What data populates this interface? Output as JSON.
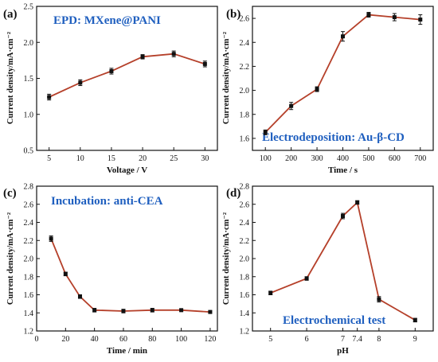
{
  "figure": {
    "colors": {
      "line": "#b5402a",
      "marker": "#111111",
      "axis": "#111111",
      "annotation": "#1f5fbf"
    }
  },
  "chart_data": [
    {
      "type": "line",
      "panel_label": "(a)",
      "annotation": "EPD: MXene@PANI",
      "xlabel": "Voltage / V",
      "ylabel": "Current density/mA·cm⁻²",
      "xlim": [
        3,
        32
      ],
      "ylim": [
        0.5,
        2.5
      ],
      "xticks": [
        5,
        10,
        15,
        20,
        25,
        30
      ],
      "xtick_labels": [
        "5",
        "10",
        "15",
        "20",
        "25",
        "30"
      ],
      "yticks": [
        0.5,
        1.0,
        1.5,
        2.0,
        2.5
      ],
      "ytick_labels": [
        "0.5",
        "1.0",
        "1.5",
        "2.0",
        "2.5"
      ],
      "series": [
        {
          "x": [
            5,
            10,
            15,
            20,
            25,
            30
          ],
          "y": [
            1.24,
            1.44,
            1.6,
            1.8,
            1.84,
            1.7
          ],
          "err": [
            0.04,
            0.04,
            0.04,
            0.03,
            0.04,
            0.04
          ]
        }
      ]
    },
    {
      "type": "line",
      "panel_label": "(b)",
      "annotation": "Electrodeposition: Au-β-CD",
      "xlabel": "Time / s",
      "ylabel": "Current density/mA·cm⁻²",
      "xlim": [
        50,
        750
      ],
      "ylim": [
        1.5,
        2.7
      ],
      "xticks": [
        100,
        200,
        300,
        400,
        500,
        600,
        700
      ],
      "xtick_labels": [
        "100",
        "200",
        "300",
        "400",
        "500",
        "600",
        "700"
      ],
      "yticks": [
        1.6,
        1.8,
        2.0,
        2.2,
        2.4,
        2.6
      ],
      "ytick_labels": [
        "1.6",
        "1.8",
        "2.0",
        "2.2",
        "2.4",
        "2.6"
      ],
      "series": [
        {
          "x": [
            100,
            200,
            300,
            400,
            500,
            600,
            700
          ],
          "y": [
            1.65,
            1.87,
            2.01,
            2.45,
            2.63,
            2.61,
            2.59
          ],
          "err": [
            0.02,
            0.03,
            0.02,
            0.04,
            0.02,
            0.03,
            0.04
          ]
        }
      ]
    },
    {
      "type": "line",
      "panel_label": "(c)",
      "annotation": "Incubation: anti-CEA",
      "xlabel": "Time / min",
      "ylabel": "Current density/mA·cm⁻²",
      "xlim": [
        0,
        125
      ],
      "ylim": [
        1.2,
        2.8
      ],
      "xticks": [
        0,
        20,
        40,
        60,
        80,
        100,
        120
      ],
      "xtick_labels": [
        "0",
        "20",
        "40",
        "60",
        "80",
        "100",
        "120"
      ],
      "yticks": [
        1.2,
        1.4,
        1.6,
        1.8,
        2.0,
        2.2,
        2.4,
        2.6,
        2.8
      ],
      "ytick_labels": [
        "1.2",
        "1.4",
        "1.6",
        "1.8",
        "2.0",
        "2.2",
        "2.4",
        "2.6",
        "2.8"
      ],
      "series": [
        {
          "x": [
            10,
            20,
            30,
            40,
            60,
            80,
            100,
            120
          ],
          "y": [
            2.22,
            1.83,
            1.58,
            1.43,
            1.42,
            1.43,
            1.43,
            1.41
          ],
          "err": [
            0.03,
            0.02,
            0.02,
            0.02,
            0.02,
            0.02,
            0.01,
            0.01
          ]
        }
      ]
    },
    {
      "type": "line",
      "panel_label": "(d)",
      "annotation": "Electrochemical test",
      "xlabel": "pH",
      "ylabel": "Current density/mA·cm⁻²",
      "xlim": [
        4.5,
        9.5
      ],
      "ylim": [
        1.2,
        2.8
      ],
      "xticks": [
        5,
        6,
        7,
        7.4,
        8,
        9
      ],
      "xtick_labels": [
        "5",
        "6",
        "7",
        "7.4",
        "8",
        "9"
      ],
      "yticks": [
        1.2,
        1.4,
        1.6,
        1.8,
        2.0,
        2.2,
        2.4,
        2.6,
        2.8
      ],
      "ytick_labels": [
        "1.2",
        "1.4",
        "1.6",
        "1.8",
        "2.0",
        "2.2",
        "2.4",
        "2.6",
        "2.8"
      ],
      "series": [
        {
          "x": [
            5,
            6,
            7,
            7.4,
            8,
            9
          ],
          "y": [
            1.62,
            1.78,
            2.47,
            2.62,
            1.55,
            1.32
          ],
          "err": [
            0.02,
            0.02,
            0.03,
            0.02,
            0.03,
            0.02
          ]
        }
      ]
    }
  ]
}
